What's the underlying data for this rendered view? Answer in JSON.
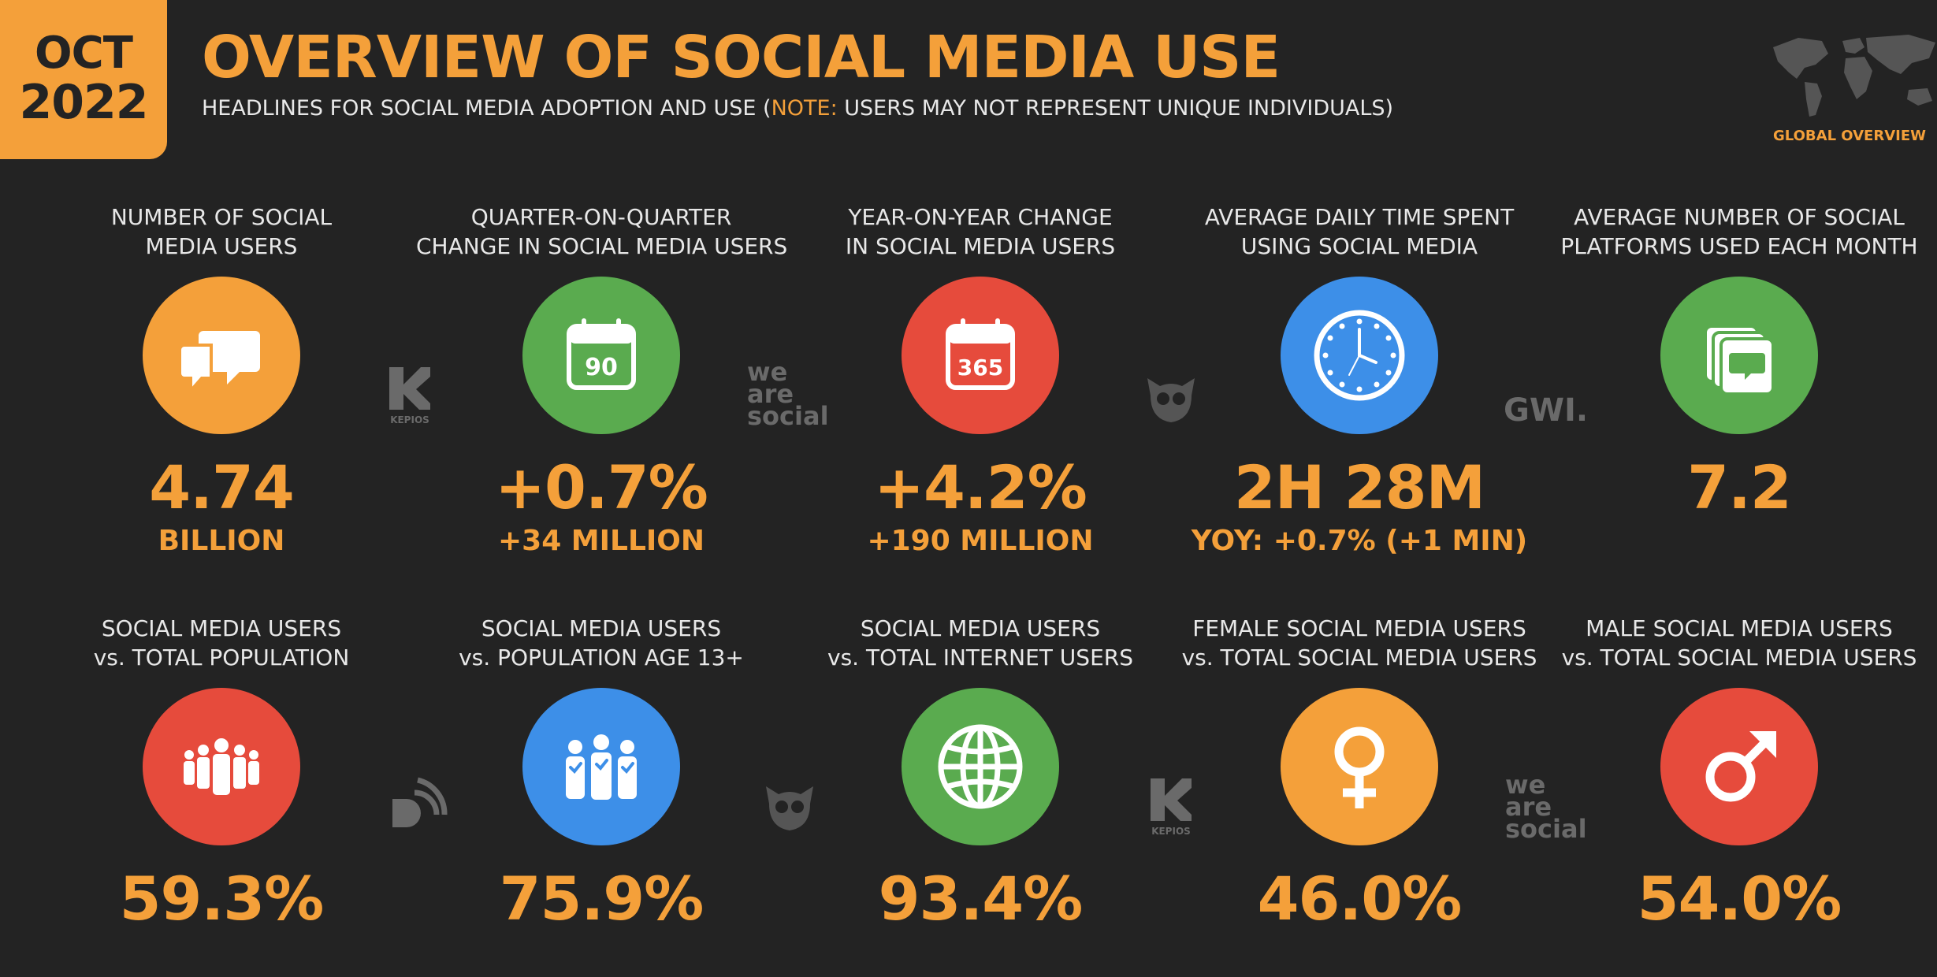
{
  "header": {
    "month": "OCT",
    "year": "2022",
    "title": "OVERVIEW OF SOCIAL MEDIA USE",
    "subtitle_pre": "HEADLINES FOR SOCIAL MEDIA ADOPTION AND USE (",
    "subtitle_note": "NOTE:",
    "subtitle_post": " USERS MAY NOT REPRESENT UNIQUE INDIVIDUALS)",
    "global_label": "GLOBAL OVERVIEW"
  },
  "row1": [
    {
      "label1": "NUMBER OF SOCIAL",
      "label2": "MEDIA USERS",
      "value": "4.74",
      "sub": "BILLION",
      "icon": "speech-bubbles-icon",
      "color": "#f4a03a"
    },
    {
      "label1": "QUARTER-ON-QUARTER",
      "label2": "CHANGE IN SOCIAL MEDIA USERS",
      "value": "+0.7%",
      "sub": "+34 MILLION",
      "icon": "calendar-icon",
      "icon_text": "90",
      "color": "#5aab4f"
    },
    {
      "label1": "YEAR-ON-YEAR CHANGE",
      "label2": "IN SOCIAL MEDIA USERS",
      "value": "+4.2%",
      "sub": "+190 MILLION",
      "icon": "calendar-icon",
      "icon_text": "365",
      "color": "#e64b3c"
    },
    {
      "label1": "AVERAGE DAILY TIME SPENT",
      "label2": "USING SOCIAL MEDIA",
      "value": "2H 28M",
      "sub": "YOY: +0.7% (+1 MIN)",
      "icon": "clock-icon",
      "color": "#3d8fe8"
    },
    {
      "label1": "AVERAGE NUMBER OF SOCIAL",
      "label2": "PLATFORMS USED EACH MONTH",
      "value": "7.2",
      "sub": "",
      "icon": "stacked-cards-icon",
      "color": "#5aab4f"
    }
  ],
  "row2": [
    {
      "label1": "SOCIAL MEDIA USERS",
      "label2": "vs. TOTAL POPULATION",
      "value": "59.3%",
      "icon": "crowd-icon",
      "color": "#e64b3c"
    },
    {
      "label1": "SOCIAL MEDIA USERS",
      "label2": "vs. POPULATION AGE 13+",
      "value": "75.9%",
      "icon": "adults-icon",
      "color": "#3d8fe8"
    },
    {
      "label1": "SOCIAL MEDIA USERS",
      "label2": "vs. TOTAL INTERNET USERS",
      "value": "93.4%",
      "icon": "globe-icon",
      "color": "#5aab4f"
    },
    {
      "label1": "FEMALE SOCIAL MEDIA USERS",
      "label2": "vs. TOTAL SOCIAL MEDIA USERS",
      "value": "46.0%",
      "icon": "female-icon",
      "color": "#f4a03a"
    },
    {
      "label1": "MALE SOCIAL MEDIA USERS",
      "label2": "vs. TOTAL SOCIAL MEDIA USERS",
      "value": "54.0%",
      "icon": "male-icon",
      "color": "#e64b3c"
    }
  ],
  "partners": {
    "kepios": "KEPIOS",
    "we_are_social": [
      "we",
      "are",
      "social"
    ],
    "gwi": "GWI."
  }
}
